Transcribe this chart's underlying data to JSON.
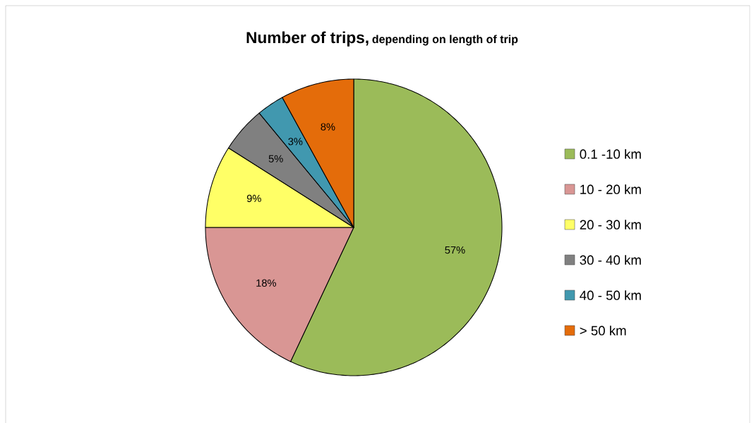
{
  "chart_data": {
    "type": "pie",
    "title": "Number of trips,",
    "subtitle": "depending on length of trip",
    "categories": [
      "0.1 -10 km",
      "10 - 20 km",
      "20 - 30 km",
      "30 - 40 km",
      "40 - 50 km",
      "> 50 km"
    ],
    "values": [
      57,
      18,
      9,
      5,
      3,
      8
    ],
    "colors": [
      "#9bbb59",
      "#d99694",
      "#ffff66",
      "#808080",
      "#4198af",
      "#e46c0a"
    ],
    "value_labels": [
      "57%",
      "18%",
      "9%",
      "5%",
      "3%",
      "8%"
    ],
    "legend": "right"
  }
}
